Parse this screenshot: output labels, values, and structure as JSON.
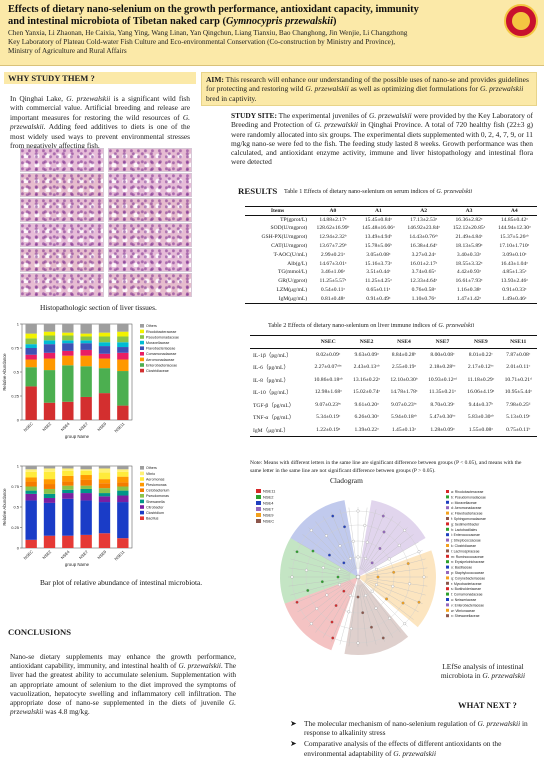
{
  "header": {
    "title_line1": "Effects of dietary nano-selenium on the growth performance, antioxidant capacity, immunity",
    "title_line2_plain": "and intestinal microbiota of Tibetan naked carp (",
    "title_line2_italic": "Gymnocypris przewalskii",
    "title_line2_end": ")",
    "authors_line1": "Chen Yanxia, Li Zhaonan, He Caixia, Yang Ying, Wang Linan, Yan Qingchun, Liang Tianxiu, Bao Changhong, Jin Wenjie, Li Changzhong",
    "affiliation_line1": "Key Laboratory of Plateau Cold-water Fish Culture and Eco-environmental Conservation (Co-construction by Ministry and Province),",
    "affiliation_line2": "Ministry of Agriculture and Rural Affairs"
  },
  "why": {
    "heading": "WHY STUDY THEM ?",
    "p1": "In Qinghai Lake,",
    "p1_italic": "G. przewalskii",
    "p1_rest": "is a significant wild fish with commercial value. Artificial breeding and release are important measures for restoring the wild resources of",
    "p1_italic2": "G. przewalskii",
    "p1_end": ". Adding feed additives to diets is one of the most widely used ways to prevent environmental stresses from negatively affecting fish."
  },
  "histology": {
    "caption": "Histopathologic section of liver tissues."
  },
  "bar_figure": {
    "caption": "Bar plot of relative abundance of intestinal microbiota."
  },
  "conclusions": {
    "heading": "CONCLUSIONS",
    "text_a": "Nano-se dietary supplements may enhance the growth performance, antioxidant capability, immunity, and intestinal health of",
    "italic_a": "G. przewalskii",
    "text_b": ". The liver had the greatest ability to accumulate selenium. Supplementation with an appropriate amount of selenium to the diet improved the symptoms of vacuolization, hepatocyte swelling and inflammatory cell infiltration. The appropriate dose of nano-se supplemented in the diets of juvenile",
    "italic_b": "G. przewalskii",
    "text_c": "was 4.8 mg/kg."
  },
  "aim": {
    "label": "AIM:",
    "text_a": "This research will enhance our understanding of the possible uses of nano-se and provides guidelines for protecting and restoring wild",
    "italic_a": "G. przewalskii",
    "text_b": "as well as optimizing diet formulations for",
    "italic_b": "G. przewalskii",
    "text_c": "bred in captivity."
  },
  "study_site": {
    "label": "STUDY SITE:",
    "text_a": "The experimental juveniles of",
    "italic_a": "G. przewalskii",
    "text_b": "were provided by the Key Laboratory of Breeding and Protection of",
    "italic_b": "G. przewalskii",
    "text_c": "in Qinghai Province. A total of 720 healthy fish (22±3 g) were randomly allocated into six groups. The experimental diets supplemented with 0, 2, 4, 7, 9, or 11 mg/kg nano-se were fed to the fish. The feeding study lasted 8 weeks. Growth performance was then calculated, and antioxidant enzyme activity, immune and liver histopathology and intestinal flora were detected"
  },
  "results": {
    "heading": "RESULTS"
  },
  "table1": {
    "caption_a": "Table 1 Effects of dietary nano-selenium on serum indices of",
    "caption_italic": "G. przewalskii",
    "columns": [
      "Items",
      "A0",
      "A1",
      "A2",
      "A3",
      "A4"
    ],
    "rows": [
      [
        "TP(gprot/L)",
        "14.88±2.17ᵃ",
        "15.45±0.84ᵃ",
        "17.13±2.53ᵃ",
        "16.36±2.82ᵃ",
        "14.85±0.42ᵃ"
      ],
      [
        "SOD(U/mgprot)",
        "128.62±16.99ᵇ",
        "145.48±16.06ᵃ",
        "146.92±23.84ᵃ",
        "152.12±20.85ᵃ",
        "144.94±12.30ᵃ"
      ],
      [
        "GSH-PX(U/mgprot)",
        "12.94±2.32ᵇ",
        "13.49±4.94ᵇ",
        "14.43±0.76ᵃᵇ",
        "21.49±4.84ᵃ",
        "15.37±5.26ᵃᵇ"
      ],
      [
        "CAT(U/mgprot)",
        "13.67±7.29ᵇ",
        "15.78±5.06ᵇ",
        "16.38±4.64ᵇ",
        "18.13±5.89ᵃ",
        "17.10±1.710ᵃ"
      ],
      [
        "T-AOC(U/mL)",
        "2.99±0.21ᵃ",
        "3.05±0.08ᵃ",
        "3.27±0.24ᵃ",
        "3.40±0.33ᵃ",
        "3.09±0.10ᵃ"
      ],
      [
        "Alb(g/L)",
        "14.67±3.01ᵃ",
        "15.16±3.73ᵃ",
        "16.01±2.17ᵃ",
        "18.55±3.32ᵃ",
        "16.43±1.04ᵃ"
      ],
      [
        "TG(mmol/L)",
        "3.46±1.06ᵃ",
        "3.51±0.44ᵃ",
        "3.74±0.65ᵃ",
        "4.42±0.93ᵃ",
        "4.85±1.35ᵃ"
      ],
      [
        "GR(U/gprot)",
        "11.25±5.57ᵃ",
        "11.25±4.25ᵃ",
        "12.33±4.64ᵃ",
        "16.61±7.93ᵃ",
        "13.93±2.46ᵃ"
      ],
      [
        "LZM(μg/mL)",
        "0.54±0.11ᵃ",
        "0.65±0.11ᵃ",
        "0.76±0.58ᵃ",
        "1.16±0.38ᵃ",
        "0.91±0.33ᵃ"
      ],
      [
        "IgM(μg/mL)",
        "0.81±0.48ᵃ",
        "0.91±0.49ᵃ",
        "1.10±0.76ᵃ",
        "1.47±1.42ᵃ",
        "1.49±0.46ᵃ"
      ]
    ]
  },
  "table2": {
    "caption_a": "Table 2 Effects of dietary nano-selenium on liver immune indices of",
    "caption_italic": "G. przewalskii",
    "columns": [
      "",
      "NSEC",
      "NSE2",
      "NSE4",
      "NSE7",
      "NSE9",
      "NSE11"
    ],
    "rows": [
      [
        "IL-1β（pg/mL）",
        "8.02±0.09ᶜ",
        "9.63±0.09ᵃ",
        "8.84±0.28ᵇ",
        "8.00±0.08ᶜ",
        "8.01±0.22ᶜ",
        "7.87±0.08ᶜ"
      ],
      [
        "IL-6（pg/mL）",
        "2.27±0.07ᵃᵇᶜ",
        "2.43±0.13ᵃᵇ",
        "2.55±0.19ᵃ",
        "2.18±0.28ᵇᶜ",
        "2.17±0.12ᵇᶜ",
        "2.01±0.11ᶜ"
      ],
      [
        "IL-8（pg/mL）",
        "10.86±0.18ᵃᵇ",
        "13.16±0.22ᵃ",
        "12.10±0.30ᵇ",
        "10.93±0.12ᵃᵈ",
        "11.18±0.29ᶜ",
        "10.71±0.21ᵈ"
      ],
      [
        "IL-10（pg/mL）",
        "12.98±1.68ᵃ",
        "15.02±0.74ᵃ",
        "14.78±1.78ᵃ",
        "11.35±0.21ᵃ",
        "16.06±4.19ᵃ",
        "10.95±5.44ᵃ"
      ],
      [
        "TGF-β（pg/mL）",
        "9.07±0.23ᵇᶜ",
        "9.61±0.20ᵃ",
        "9.07±0.23ᵇᶜ",
        "8.70±0.39ᶜ",
        "9.44±0.37ᵇ",
        "7.98±0.25ᵈ"
      ],
      [
        "TNF-α（pg/mL）",
        "5.34±0.19ᶜ",
        "6.26±0.30ᵃ",
        "5.94±0.18ᵃᵇ",
        "5.47±0.30ᵇᶜ",
        "5.83±0.30ᵃᵇ",
        "5.13±0.19ᶜ"
      ],
      [
        "IgM（μg/mL）",
        "1.22±0.19ᵃ",
        "1.39±0.22ᵃ",
        "1.45±0.13ᵃ",
        "1.28±0.09ᵃ",
        "1.55±0.08ᵃ",
        "0.75±0.11ᵇ"
      ]
    ],
    "note_line1": "Note: Means with different letters in the same line are significant difference between groups (P < 0.05), and means with the",
    "note_line2": "same letter in the same line are not significant difference between groups (P > 0.05)."
  },
  "cladogram": {
    "title": "Cladogram",
    "groups": [
      "NSE11",
      "NSE2",
      "NSE4",
      "NSE7",
      "NSE9",
      "NSEC"
    ],
    "group_colors": [
      "#d62728",
      "#2ca02c",
      "#1f3fbf",
      "#9467bd",
      "#f4a11d",
      "#8c564b"
    ],
    "legend": [
      "a: Rhodobacteraceae",
      "b: Pseudomonadaceae",
      "c: Moraxellaceae",
      "d: Aeromonadaceae",
      "e: Flavobacteriaceae",
      "f: Sphingomonadaceae",
      "g: Sedimentibacter",
      "h: Lactobacillales",
      "i: Enterococcaceae",
      "j: Streptococcaceae",
      "k: Clostridiaceae",
      "l: Lachnospiraceae",
      "m: Ruminococcaceae",
      "n: Erysipelotrichaceae",
      "o: Bacillaceae",
      "p: Staphylococcaceae",
      "q: Corynebacteriaceae",
      "r: Mycobacteriaceae",
      "s: Burkholderiaceae",
      "t: Comamonadaceae",
      "u: Neisseriaceae",
      "v: Enterobacteriaceae",
      "w: Vibrionaceae",
      "x: Shewanellaceae"
    ],
    "caption_a": "LEfSe analysis of intestinal microbiota in",
    "caption_italic": "G. przewalskii"
  },
  "next": {
    "heading": "WHAT NEXT ?",
    "item1_a": "The molecular mechanism of nano-selenium regulation of",
    "item1_italic": "G. przewalskii",
    "item1_b": "in response to alkalinity stress",
    "item2_a": "Comparative analysis of the effects of different antioxidants on the environmental adaptability of",
    "item2_italic": "G. przewalskii"
  },
  "chart_data": [
    {
      "type": "bar",
      "stacked": true,
      "title": "",
      "categories": [
        "NSEC",
        "NSE2",
        "NSE4",
        "NSE7",
        "NSE9",
        "NSE11"
      ],
      "xlabel": "group Name",
      "ylabel": "Relative Abundance",
      "ylim": [
        0,
        1
      ],
      "series": [
        {
          "name": "Others",
          "color": "#9e9e9e",
          "values": [
            0.1,
            0.08,
            0.09,
            0.1,
            0.09,
            0.08
          ]
        },
        {
          "name": "Rhodobacteraceae",
          "color": "#f2f200",
          "values": [
            0.05,
            0.04,
            0.03,
            0.03,
            0.04,
            0.05
          ]
        },
        {
          "name": "Pseudomonadaceae",
          "color": "#8bc34a",
          "values": [
            0.06,
            0.05,
            0.05,
            0.04,
            0.06,
            0.06
          ]
        },
        {
          "name": "Moraxellaceae",
          "color": "#00bcd4",
          "values": [
            0.04,
            0.04,
            0.03,
            0.03,
            0.04,
            0.05
          ]
        },
        {
          "name": "Flavobacteriaceae",
          "color": "#3f51b5",
          "values": [
            0.07,
            0.09,
            0.08,
            0.07,
            0.08,
            0.06
          ]
        },
        {
          "name": "Comamonadaceae",
          "color": "#e91e63",
          "values": [
            0.05,
            0.06,
            0.05,
            0.06,
            0.05,
            0.07
          ]
        },
        {
          "name": "Aeromonadaceae",
          "color": "#ff9800",
          "values": [
            0.08,
            0.12,
            0.1,
            0.11,
            0.1,
            0.12
          ]
        },
        {
          "name": "Enterobacteriaceae",
          "color": "#4caf50",
          "values": [
            0.2,
            0.34,
            0.38,
            0.32,
            0.26,
            0.36
          ]
        },
        {
          "name": "Clostridiaceae",
          "color": "#d32f2f",
          "values": [
            0.35,
            0.18,
            0.19,
            0.24,
            0.28,
            0.15
          ]
        }
      ]
    },
    {
      "type": "bar",
      "stacked": true,
      "title": "",
      "categories": [
        "NSEC",
        "NSE2",
        "NSE4",
        "NSE7",
        "NSE9",
        "NSE11"
      ],
      "xlabel": "group Name",
      "ylabel": "Relative Abundance",
      "ylim": [
        0,
        1
      ],
      "series": [
        {
          "name": "Others",
          "color": "#9e9e9e",
          "values": [
            0.04,
            0.03,
            0.03,
            0.04,
            0.03,
            0.04
          ]
        },
        {
          "name": "Vibrio",
          "color": "#fff176",
          "values": [
            0.03,
            0.04,
            0.03,
            0.02,
            0.05,
            0.03
          ]
        },
        {
          "name": "Aeromonas",
          "color": "#ffeb3b",
          "values": [
            0.07,
            0.09,
            0.06,
            0.05,
            0.08,
            0.06
          ]
        },
        {
          "name": "Plesiomonas",
          "color": "#ff9800",
          "values": [
            0.05,
            0.06,
            0.07,
            0.06,
            0.05,
            0.07
          ]
        },
        {
          "name": "Cetobacterium",
          "color": "#f57c00",
          "values": [
            0.06,
            0.06,
            0.05,
            0.07,
            0.06,
            0.05
          ]
        },
        {
          "name": "Pseudomonas",
          "color": "#8bc34a",
          "values": [
            0.05,
            0.06,
            0.05,
            0.04,
            0.06,
            0.05
          ]
        },
        {
          "name": "Shewanella",
          "color": "#009688",
          "values": [
            0.04,
            0.05,
            0.04,
            0.05,
            0.04,
            0.06
          ]
        },
        {
          "name": "Citrobacter",
          "color": "#7b1fa2",
          "values": [
            0.08,
            0.06,
            0.07,
            0.09,
            0.07,
            0.08
          ]
        },
        {
          "name": "Clostridium",
          "color": "#1a3cc7",
          "values": [
            0.48,
            0.4,
            0.45,
            0.42,
            0.38,
            0.44
          ]
        },
        {
          "name": "Bacillus",
          "color": "#e53935",
          "values": [
            0.1,
            0.15,
            0.15,
            0.16,
            0.18,
            0.12
          ]
        }
      ]
    }
  ]
}
